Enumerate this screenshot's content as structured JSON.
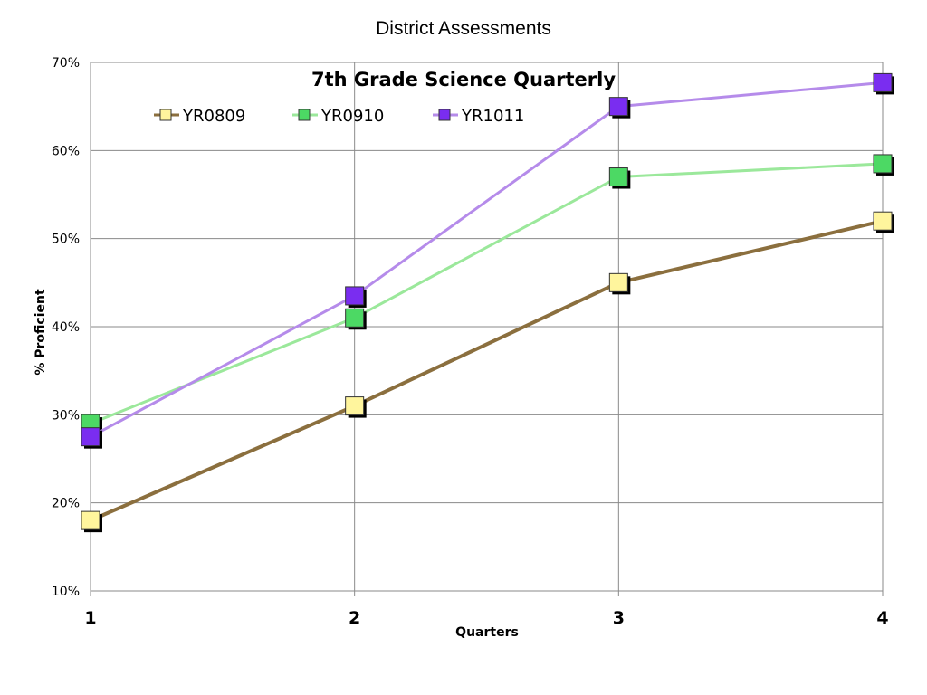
{
  "page": {
    "title": "District Assessments"
  },
  "chart_data": {
    "type": "line",
    "title": "7th Grade Science Quarterly",
    "xlabel": "Quarters",
    "ylabel": "% Proficient",
    "categories": [
      "1",
      "2",
      "3",
      "4"
    ],
    "ylim": [
      0.1,
      0.7
    ],
    "yticks": [
      "10%",
      "20%",
      "30%",
      "40%",
      "50%",
      "60%",
      "70%"
    ],
    "grid": true,
    "legend_position": "top",
    "series": [
      {
        "name": "YR0809",
        "values": [
          0.18,
          0.31,
          0.45,
          0.52
        ],
        "color": "#8B6F3E",
        "marker_color": "#FFF59D"
      },
      {
        "name": "YR0910",
        "values": [
          0.29,
          0.41,
          0.57,
          0.585
        ],
        "color": "#9BE89B",
        "marker_color": "#4CD964"
      },
      {
        "name": "YR1011",
        "values": [
          0.275,
          0.435,
          0.65,
          0.677
        ],
        "color": "#B58BEA",
        "marker_color": "#7A2DF0"
      }
    ]
  }
}
